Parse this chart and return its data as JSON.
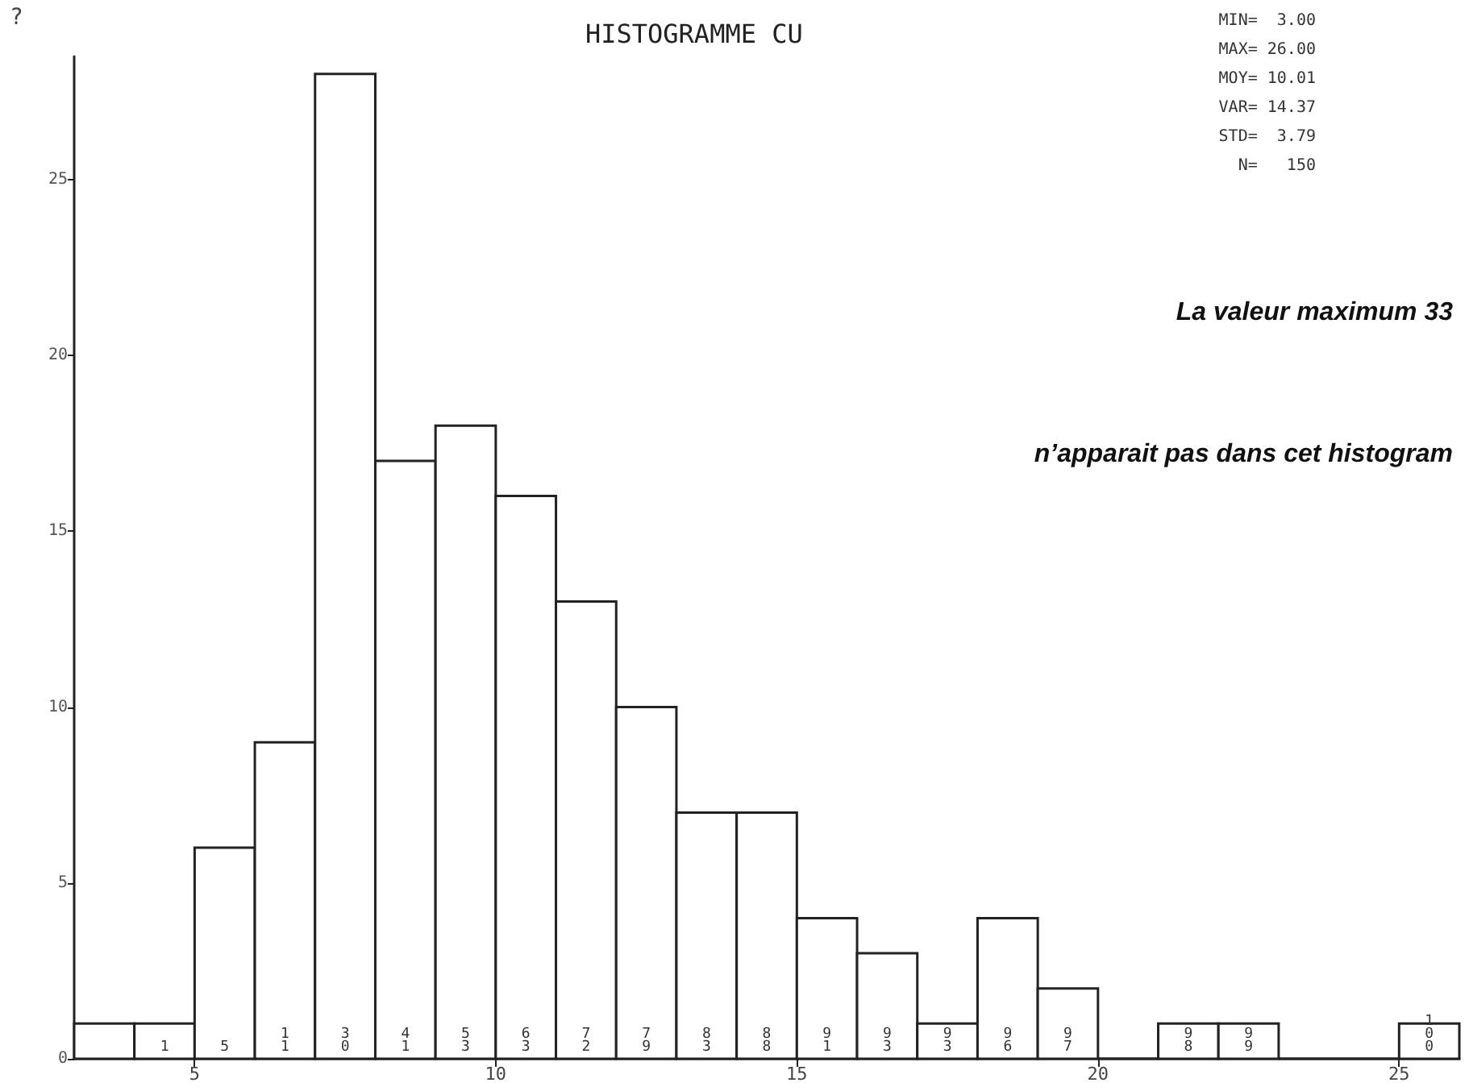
{
  "chart_data": {
    "type": "histogram",
    "title": "HISTOGRAMME CU",
    "bins": [
      3,
      4,
      5,
      6,
      7,
      8,
      9,
      10,
      11,
      12,
      13,
      14,
      15,
      16,
      17,
      18,
      19,
      20,
      21,
      22,
      23,
      24,
      25,
      26
    ],
    "values": [
      1,
      1,
      6,
      9,
      28,
      17,
      18,
      16,
      13,
      10,
      7,
      7,
      4,
      3,
      1,
      4,
      2,
      0,
      1,
      1,
      0,
      0,
      1
    ],
    "color": "#ffffff",
    "xlim": [
      3,
      26
    ],
    "xticks": [
      5,
      10,
      15,
      20,
      25
    ],
    "ylim": [
      0,
      28.5
    ],
    "yticks": [
      0,
      5,
      10,
      15,
      20,
      25
    ],
    "annotations": [
      "?",
      "MIN=  3.00",
      "MAX= 26.00",
      "MOY= 10.01",
      "VAR= 14.37",
      "STD=  3.79",
      "N=   150",
      "La valeur maximum 33",
      "n’apparait pas dans cet histogram",
      {
        "text": "1",
        "x": 4.5,
        "y": 0
      },
      {
        "text": "5",
        "x": 5.5,
        "y": 0
      },
      {
        "text": "11",
        "x": 6.5,
        "y": 0
      },
      {
        "text": "30",
        "x": 7.5,
        "y": 0
      },
      {
        "text": "41",
        "x": 8.5,
        "y": 0
      },
      {
        "text": "53",
        "x": 9.5,
        "y": 0
      },
      {
        "text": "63",
        "x": 10.5,
        "y": 0
      },
      {
        "text": "72",
        "x": 11.5,
        "y": 0
      },
      {
        "text": "79",
        "x": 12.5,
        "y": 0
      },
      {
        "text": "83",
        "x": 13.5,
        "y": 0
      },
      {
        "text": "88",
        "x": 14.5,
        "y": 0
      },
      {
        "text": "91",
        "x": 15.5,
        "y": 0
      },
      {
        "text": "93",
        "x": 16.5,
        "y": 0
      },
      {
        "text": "93",
        "x": 17.5,
        "y": 0
      },
      {
        "text": "96",
        "x": 18.5,
        "y": 0
      },
      {
        "text": "97",
        "x": 19.5,
        "y": 0
      },
      {
        "text": "98",
        "x": 21.5,
        "y": 0
      },
      {
        "text": "99",
        "x": 22.5,
        "y": 0
      },
      {
        "text": "100",
        "x": 25.5,
        "y": 0
      }
    ]
  }
}
